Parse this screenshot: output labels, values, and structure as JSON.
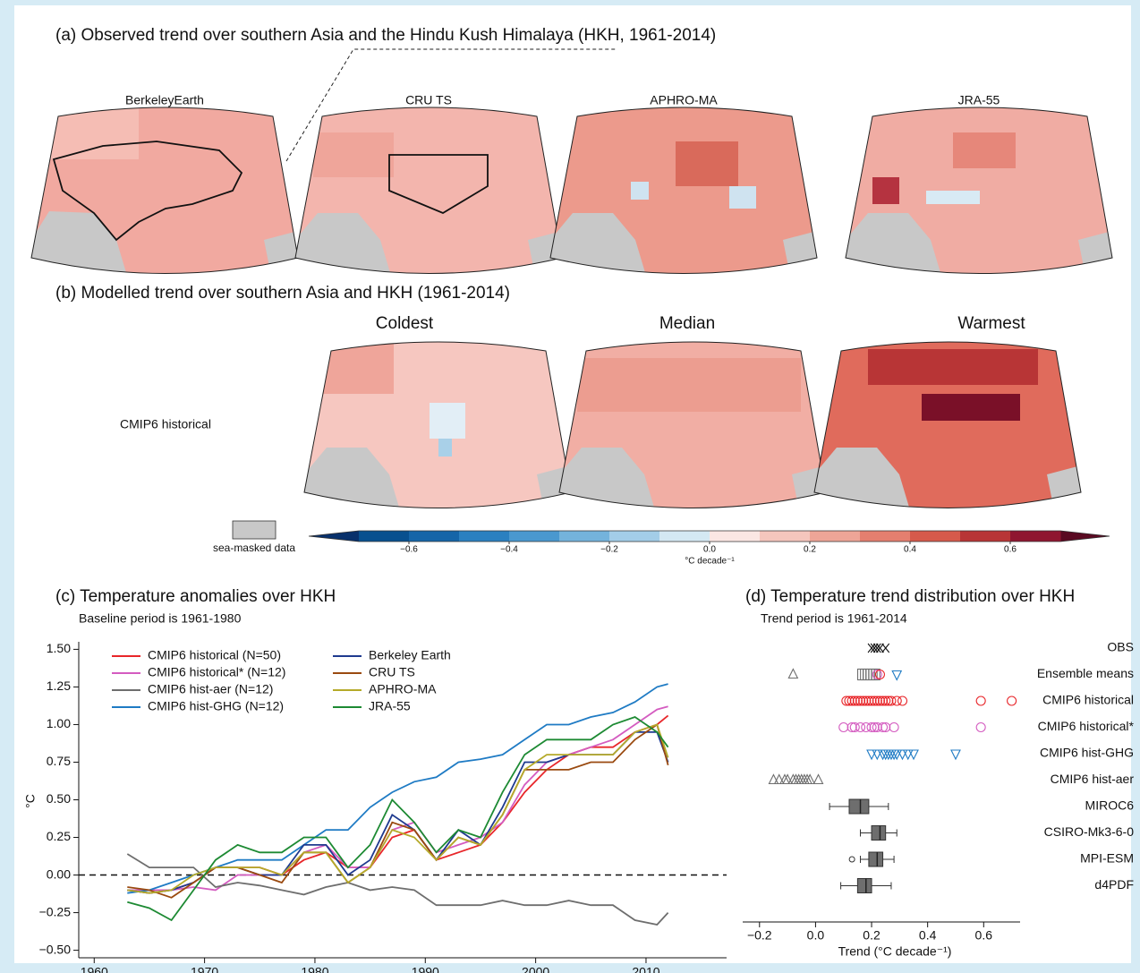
{
  "panel_a": {
    "title": "(a) Observed trend over southern Asia and the Hindu Kush Himalaya (HKH, 1961-2014)",
    "maps": [
      "BerkeleyEarth",
      "CRU TS",
      "APHRO-MA",
      "JRA-55"
    ]
  },
  "panel_b": {
    "title": "(b) Modelled trend over southern Asia and HKH (1961-2014)",
    "row_label": "CMIP6 historical",
    "columns": [
      {
        "name": "Coldest",
        "color": "#1f7bc4"
      },
      {
        "name": "Median",
        "color": "#111111"
      },
      {
        "name": "Warmest",
        "color": "#a0192e"
      }
    ]
  },
  "colorbar": {
    "mask_label": "sea-masked data",
    "mask_color": "#c8c8c8",
    "unit": "°C decade⁻¹",
    "lim": [
      -0.7,
      0.7
    ],
    "colors": [
      "#08508f",
      "#1565a8",
      "#2b80c0",
      "#4a98cf",
      "#74b3dc",
      "#a3cde8",
      "#d4e8f3",
      "#fbe7e3",
      "#f5c6bd",
      "#eea597",
      "#e47f6f",
      "#d65a4b",
      "#b83536",
      "#8f1630"
    ],
    "extend_colors": [
      "#08306b",
      "#5a0a22"
    ],
    "ticks": [
      {
        "value": -0.6,
        "label": "−0.6"
      },
      {
        "value": -0.4,
        "label": "−0.4"
      },
      {
        "value": -0.2,
        "label": "−0.2"
      },
      {
        "value": 0,
        "label": "0.0"
      },
      0.2,
      0.4,
      0.6
    ]
  },
  "chart_data": [
    {
      "type": "line",
      "title": "(c) Temperature anomalies over HKH",
      "subtitle": "Baseline period is 1961-1980",
      "y_label": "°C",
      "x": [
        1963,
        1965,
        1967,
        1969,
        1971,
        1973,
        1975,
        1977,
        1979,
        1981,
        1983,
        1985,
        1987,
        1989,
        1991,
        1993,
        1995,
        1997,
        1999,
        2001,
        2003,
        2005,
        2007,
        2009,
        2011,
        2012
      ],
      "xlim": [
        1958.6,
        2017.3
      ],
      "xticks": [
        1960,
        1970,
        1980,
        1990,
        2000,
        2010
      ],
      "ylim": [
        -0.55,
        1.55
      ],
      "yticks": [
        {
          "value": -0.5,
          "label": "−0.50"
        },
        {
          "value": -0.25,
          "label": "−0.25"
        },
        {
          "value": 0,
          "label": "0.00"
        },
        {
          "value": 0.25,
          "label": "0.25"
        },
        {
          "value": 0.5,
          "label": "0.50"
        },
        {
          "value": 0.75,
          "label": "0.75"
        },
        {
          "value": 1,
          "label": "1.00"
        },
        {
          "value": 1.25,
          "label": "1.25"
        },
        {
          "value": 1.5,
          "label": "1.50"
        }
      ],
      "series": [
        {
          "name": "CMIP6 historical (N=50)",
          "color": "#e8262a",
          "values": [
            -0.1,
            -0.12,
            -0.1,
            -0.05,
            0.05,
            0.05,
            0.05,
            0.0,
            0.1,
            0.15,
            0.05,
            0.05,
            0.25,
            0.3,
            0.1,
            0.15,
            0.2,
            0.35,
            0.55,
            0.7,
            0.8,
            0.85,
            0.85,
            0.95,
            1.0,
            1.06
          ]
        },
        {
          "name": "CMIP6 historical* (N=12)",
          "color": "#d45cc0",
          "values": [
            -0.1,
            -0.1,
            -0.1,
            -0.08,
            -0.1,
            0.0,
            0.0,
            0.0,
            0.15,
            0.2,
            0.05,
            0.05,
            0.3,
            0.35,
            0.15,
            0.2,
            0.25,
            0.35,
            0.6,
            0.75,
            0.8,
            0.85,
            0.9,
            1.0,
            1.1,
            1.12
          ]
        },
        {
          "name": "CMIP6 hist-aer (N=12)",
          "color": "#6e6e6e",
          "values": [
            0.14,
            0.05,
            0.05,
            0.05,
            -0.08,
            -0.05,
            -0.07,
            -0.1,
            -0.13,
            -0.08,
            -0.05,
            -0.1,
            -0.08,
            -0.1,
            -0.2,
            -0.2,
            -0.2,
            -0.17,
            -0.2,
            -0.2,
            -0.17,
            -0.2,
            -0.2,
            -0.3,
            -0.33,
            -0.25
          ]
        },
        {
          "name": "CMIP6 hist-GHG (N=12)",
          "color": "#1f7bc4",
          "values": [
            -0.12,
            -0.1,
            -0.05,
            0.0,
            0.05,
            0.1,
            0.1,
            0.1,
            0.2,
            0.3,
            0.3,
            0.45,
            0.55,
            0.62,
            0.65,
            0.75,
            0.77,
            0.8,
            0.9,
            1.0,
            1.0,
            1.05,
            1.08,
            1.15,
            1.25,
            1.27
          ]
        },
        {
          "name": "Berkeley Earth",
          "color": "#1f3a8f",
          "values": [
            -0.1,
            -0.12,
            -0.1,
            -0.05,
            0.05,
            0.05,
            0.0,
            0.0,
            0.2,
            0.2,
            0.0,
            0.1,
            0.4,
            0.3,
            0.1,
            0.3,
            0.2,
            0.45,
            0.75,
            0.75,
            0.8,
            0.8,
            0.8,
            0.95,
            0.95,
            0.75
          ]
        },
        {
          "name": "CRU TS",
          "color": "#9a4a10",
          "values": [
            -0.08,
            -0.1,
            -0.15,
            -0.05,
            0.05,
            0.05,
            0.0,
            -0.05,
            0.15,
            0.15,
            -0.05,
            0.05,
            0.35,
            0.3,
            0.1,
            0.25,
            0.2,
            0.4,
            0.7,
            0.7,
            0.7,
            0.75,
            0.75,
            0.9,
            1.0,
            0.73
          ]
        },
        {
          "name": "APHRO-MA",
          "color": "#b5aa2a",
          "values": [
            -0.1,
            -0.12,
            -0.1,
            0.0,
            0.05,
            0.05,
            0.05,
            0.0,
            0.15,
            0.15,
            -0.05,
            0.05,
            0.3,
            0.25,
            0.1,
            0.25,
            0.2,
            0.4,
            0.7,
            0.8,
            0.8,
            0.8,
            0.8,
            0.95,
            1.0,
            0.78
          ]
        },
        {
          "name": "JRA-55",
          "color": "#1d8a33",
          "values": [
            -0.18,
            -0.22,
            -0.3,
            -0.1,
            0.1,
            0.2,
            0.15,
            0.15,
            0.25,
            0.25,
            0.05,
            0.2,
            0.5,
            0.35,
            0.15,
            0.3,
            0.25,
            0.55,
            0.8,
            0.9,
            0.9,
            0.9,
            1.0,
            1.05,
            0.95,
            0.85
          ]
        }
      ]
    },
    {
      "type": "strip",
      "title": "(d) Temperature trend distribution over HKH",
      "subtitle": "Trend period is 1961-2014",
      "x_label": "Trend (°C decade⁻¹)",
      "xlim": [
        -0.26,
        0.73
      ],
      "xticks": [
        {
          "value": -0.2,
          "label": "−0.2"
        },
        {
          "value": 0,
          "label": "0.0"
        },
        0.2,
        0.4,
        0.6
      ],
      "rows": [
        {
          "label": "OBS",
          "label_color": "#111111",
          "groups": [
            {
              "marker": "cross",
              "color": "#111111",
              "values": [
                0.2,
                0.21,
                0.22,
                0.23,
                0.25
              ]
            }
          ]
        },
        {
          "label": "Ensemble means",
          "label_color": "#111111",
          "groups": [
            {
              "marker": "triangle",
              "color": "#6e6e6e",
              "values": [
                -0.08
              ]
            },
            {
              "marker": "square",
              "color": "#6e6e6e",
              "values": [
                0.16,
                0.17,
                0.18,
                0.19,
                0.2,
                0.21,
                0.22
              ]
            },
            {
              "marker": "circle",
              "color": "#d45cc0",
              "values": [
                0.22
              ]
            },
            {
              "marker": "circle",
              "color": "#e8262a",
              "values": [
                0.23
              ]
            },
            {
              "marker": "triangle-down",
              "color": "#1f7bc4",
              "values": [
                0.29
              ]
            }
          ]
        },
        {
          "label": "CMIP6 historical",
          "label_color": "#e8262a",
          "groups": [
            {
              "marker": "circle",
              "color": "#e8262a",
              "values": [
                0.11,
                0.12,
                0.13,
                0.14,
                0.15,
                0.16,
                0.17,
                0.18,
                0.19,
                0.2,
                0.21,
                0.22,
                0.23,
                0.24,
                0.25,
                0.26,
                0.27,
                0.29,
                0.31,
                0.59,
                0.7
              ]
            }
          ]
        },
        {
          "label": "CMIP6 historical*",
          "label_color": "#d45cc0",
          "groups": [
            {
              "marker": "circle",
              "color": "#d45cc0",
              "values": [
                0.1,
                0.13,
                0.14,
                0.16,
                0.18,
                0.2,
                0.21,
                0.22,
                0.24,
                0.25,
                0.28,
                0.59
              ]
            }
          ]
        },
        {
          "label": "CMIP6 hist-GHG",
          "label_color": "#1f7bc4",
          "groups": [
            {
              "marker": "triangle-down",
              "color": "#1f7bc4",
              "values": [
                0.2,
                0.22,
                0.24,
                0.25,
                0.26,
                0.27,
                0.28,
                0.29,
                0.31,
                0.33,
                0.35,
                0.5
              ]
            }
          ]
        },
        {
          "label": "CMIP6 hist-aer",
          "label_color": "#8a8a8a",
          "groups": [
            {
              "marker": "triangle",
              "color": "#6e6e6e",
              "values": [
                -0.15,
                -0.13,
                -0.11,
                -0.1,
                -0.08,
                -0.07,
                -0.06,
                -0.05,
                -0.04,
                -0.03,
                -0.02,
                0.01
              ]
            }
          ]
        },
        {
          "label": "MIROC6",
          "label_color": "#111111",
          "box": [
            0.05,
            0.12,
            0.16,
            0.19,
            0.26
          ],
          "outliers": []
        },
        {
          "label": "CSIRO-Mk3-6-0",
          "label_color": "#111111",
          "box": [
            0.16,
            0.2,
            0.23,
            0.25,
            0.29
          ],
          "outliers": []
        },
        {
          "label": "MPI-ESM",
          "label_color": "#111111",
          "box": [
            0.16,
            0.19,
            0.22,
            0.24,
            0.28
          ],
          "outliers": [
            0.13
          ]
        },
        {
          "label": "d4PDF",
          "label_color": "#111111",
          "box": [
            0.09,
            0.15,
            0.18,
            0.2,
            0.27
          ],
          "outliers": []
        }
      ],
      "box_color": "#6e6e6e"
    }
  ]
}
